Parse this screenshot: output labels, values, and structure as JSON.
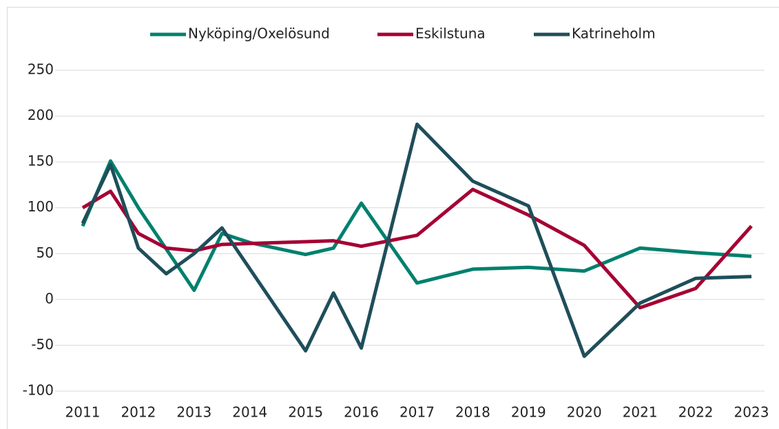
{
  "chart_data": {
    "type": "line",
    "xlim": [
      2011,
      2023
    ],
    "xticks": [
      2011,
      2012,
      2013,
      2014,
      2015,
      2016,
      2017,
      2018,
      2019,
      2020,
      2021,
      2022,
      2023
    ],
    "ylim": [
      -100,
      250
    ],
    "yticks": [
      -100,
      -50,
      0,
      50,
      100,
      150,
      200,
      250
    ],
    "grid": true,
    "legend": "top",
    "series": [
      {
        "name": "Nyköping/Oxelösund",
        "color": "#00806e",
        "x": [
          2011,
          2011.5,
          2012,
          2013,
          2013.5,
          2014,
          2015,
          2015.5,
          2016,
          2017,
          2018,
          2019,
          2020,
          2021,
          2022,
          2023
        ],
        "values": [
          80,
          151,
          100,
          10,
          72,
          62,
          49,
          56,
          105,
          18,
          33,
          35,
          31,
          56,
          51,
          47
        ]
      },
      {
        "name": "Eskilstuna",
        "color": "#a50034",
        "x": [
          2011,
          2011.5,
          2012,
          2012.5,
          2013,
          2013.5,
          2014,
          2015,
          2015.5,
          2016,
          2017,
          2018,
          2019,
          2020,
          2021,
          2022,
          2023
        ],
        "values": [
          100,
          118,
          72,
          56,
          53,
          60,
          61,
          63,
          64,
          58,
          70,
          120,
          92,
          59,
          -9,
          12,
          80
        ]
      },
      {
        "name": "Katrineholm",
        "color": "#1f4e5a",
        "x": [
          2011,
          2011.5,
          2012,
          2012.5,
          2013,
          2013.5,
          2015,
          2015.5,
          2016,
          2017,
          2018,
          2019,
          2020,
          2021,
          2022,
          2023
        ],
        "values": [
          83,
          147,
          56,
          28,
          50,
          78,
          -56,
          7,
          -53,
          191,
          129,
          102,
          -62,
          -4,
          23,
          25
        ]
      }
    ]
  }
}
